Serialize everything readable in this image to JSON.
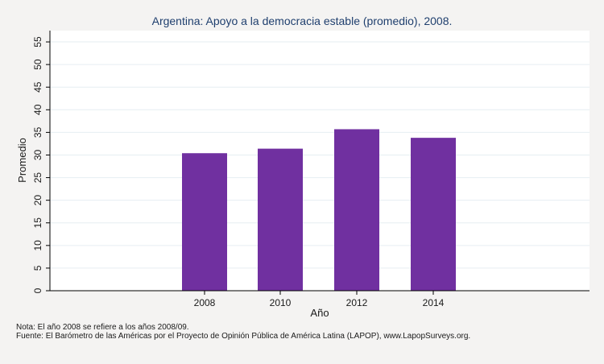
{
  "chart_data": {
    "type": "bar",
    "title": "Argentina: Apoyo a la democracia estable (promedio), 2008.",
    "xlabel": "Año",
    "ylabel": "Promedio",
    "categories": [
      "2008",
      "2010",
      "2012",
      "2014"
    ],
    "values": [
      30.4,
      31.4,
      35.7,
      33.8
    ],
    "yticks": [
      0,
      5,
      10,
      15,
      20,
      25,
      30,
      35,
      40,
      45,
      50,
      55
    ],
    "ylim": [
      0,
      57.5
    ],
    "grid": true,
    "legend": "none",
    "bar_color": "#7030a0",
    "title_color": "#1f3f6e"
  },
  "notes": {
    "nota": "Nota: El año 2008 se refiere a los años 2008/09.",
    "fuente": "Fuente: El Barómetro de las Américas por el Proyecto de Opinión Pública de América Latina (LAPOP), www.LapopSurveys.org."
  }
}
